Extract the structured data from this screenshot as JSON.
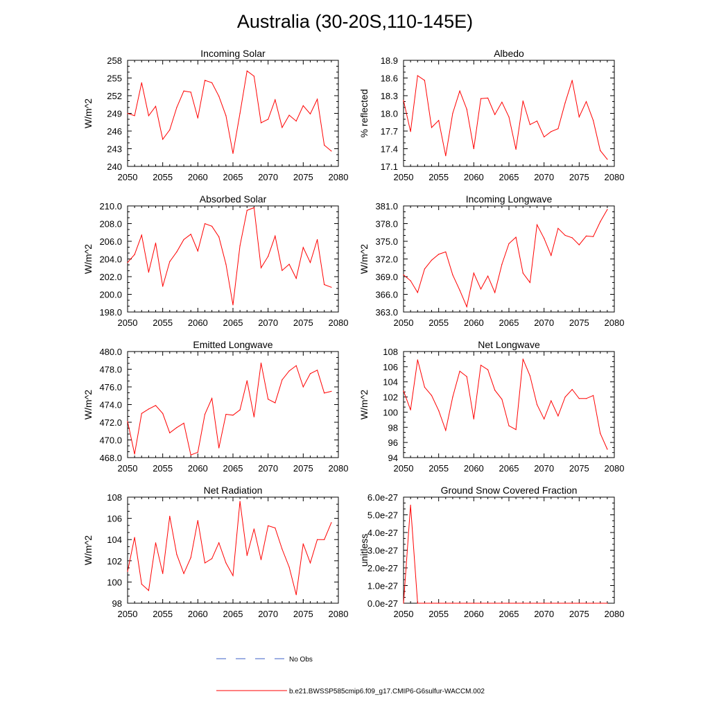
{
  "figure": {
    "title": "Australia (30-20S,110-145E)"
  },
  "legend": {
    "entries": [
      {
        "label": "No Obs",
        "color": "#3b5fc7",
        "dash": true
      },
      {
        "label": "b.e21.BWSSP585cmip6.f09_g17.CMIP6-G6sulfur-WACCM.002",
        "color": "#ff0000",
        "dash": false
      }
    ]
  },
  "chart_data": [
    {
      "type": "line",
      "title": "Incoming Solar",
      "ylabel": "W/m^2",
      "xlim": [
        2050,
        2080
      ],
      "ylim": [
        240,
        258
      ],
      "xticks": [
        "2050",
        "2055",
        "2060",
        "2065",
        "2070",
        "2075",
        "2080"
      ],
      "yticks": [
        "240",
        "243",
        "246",
        "249",
        "252",
        "255",
        "258"
      ],
      "series": [
        {
          "color": "#ff0000",
          "x": [
            2050,
            2051,
            2052,
            2053,
            2054,
            2055,
            2056,
            2057,
            2058,
            2059,
            2060,
            2061,
            2062,
            2063,
            2064,
            2065,
            2066,
            2067,
            2068,
            2069,
            2070,
            2071,
            2072,
            2073,
            2074,
            2075,
            2076,
            2077,
            2078,
            2079
          ],
          "values": [
            249.0,
            248.6,
            254.2,
            248.6,
            250.2,
            244.6,
            246.2,
            250.0,
            252.8,
            252.6,
            248.2,
            254.6,
            254.2,
            251.9,
            248.6,
            242.2,
            249.0,
            256.2,
            255.3,
            247.4,
            248.0,
            251.3,
            246.6,
            248.7,
            247.7,
            250.3,
            248.9,
            251.4,
            243.6,
            242.6
          ]
        }
      ]
    },
    {
      "type": "line",
      "title": "Albedo",
      "ylabel": "% reflected",
      "xlim": [
        2050,
        2080
      ],
      "ylim": [
        17.1,
        18.9
      ],
      "xticks": [
        "2050",
        "2055",
        "2060",
        "2065",
        "2070",
        "2075",
        "2080"
      ],
      "yticks": [
        "17.1",
        "17.4",
        "17.7",
        "18.0",
        "18.3",
        "18.6",
        "18.9"
      ],
      "series": [
        {
          "color": "#ff0000",
          "x": [
            2050,
            2051,
            2052,
            2053,
            2054,
            2055,
            2056,
            2057,
            2058,
            2059,
            2060,
            2061,
            2062,
            2063,
            2064,
            2065,
            2066,
            2067,
            2068,
            2069,
            2070,
            2071,
            2072,
            2073,
            2074,
            2075,
            2076,
            2077,
            2078,
            2079
          ],
          "values": [
            18.22,
            17.69,
            18.64,
            18.56,
            17.76,
            17.88,
            17.28,
            18.0,
            18.38,
            18.07,
            17.4,
            18.25,
            18.26,
            17.98,
            18.19,
            17.94,
            17.39,
            18.21,
            17.81,
            17.87,
            17.6,
            17.69,
            17.74,
            18.18,
            18.56,
            17.94,
            18.2,
            17.88,
            17.37,
            17.22
          ]
        }
      ]
    },
    {
      "type": "line",
      "title": "Absorbed Solar",
      "ylabel": "W/m^2",
      "xlim": [
        2050,
        2080
      ],
      "ylim": [
        198.0,
        210.0
      ],
      "xticks": [
        "2050",
        "2055",
        "2060",
        "2065",
        "2070",
        "2075",
        "2080"
      ],
      "yticks": [
        "198.0",
        "200.0",
        "202.0",
        "204.0",
        "206.0",
        "208.0",
        "210.0"
      ],
      "series": [
        {
          "color": "#ff0000",
          "x": [
            2050,
            2051,
            2052,
            2053,
            2054,
            2055,
            2056,
            2057,
            2058,
            2059,
            2060,
            2061,
            2062,
            2063,
            2064,
            2065,
            2066,
            2067,
            2068,
            2069,
            2070,
            2071,
            2072,
            2073,
            2074,
            2075,
            2076,
            2077,
            2078,
            2079
          ],
          "values": [
            203.6,
            204.5,
            206.7,
            202.5,
            205.8,
            200.9,
            203.7,
            204.8,
            206.2,
            206.8,
            204.9,
            208.0,
            207.7,
            206.5,
            203.4,
            198.8,
            205.5,
            209.5,
            209.8,
            203.0,
            204.3,
            206.6,
            202.7,
            203.4,
            201.8,
            205.3,
            203.6,
            206.2,
            201.1,
            200.8
          ]
        }
      ]
    },
    {
      "type": "line",
      "title": "Incoming Longwave",
      "ylabel": "W/m^2",
      "xlim": [
        2050,
        2080
      ],
      "ylim": [
        363.0,
        381.0
      ],
      "xticks": [
        "2050",
        "2055",
        "2060",
        "2065",
        "2070",
        "2075",
        "2080"
      ],
      "yticks": [
        "363.0",
        "366.0",
        "369.0",
        "372.0",
        "375.0",
        "378.0",
        "381.0"
      ],
      "series": [
        {
          "color": "#ff0000",
          "x": [
            2050,
            2051,
            2052,
            2053,
            2054,
            2055,
            2056,
            2057,
            2058,
            2059,
            2060,
            2061,
            2062,
            2063,
            2064,
            2065,
            2066,
            2067,
            2068,
            2069,
            2070,
            2071,
            2072,
            2073,
            2074,
            2075,
            2076,
            2077,
            2078,
            2079
          ],
          "values": [
            369.3,
            368.3,
            366.3,
            370.3,
            371.8,
            372.8,
            373.2,
            369.3,
            366.7,
            363.9,
            369.6,
            366.9,
            369.1,
            366.3,
            371.1,
            374.6,
            375.7,
            369.6,
            368.0,
            377.8,
            375.5,
            372.6,
            377.2,
            376.0,
            375.6,
            374.4,
            375.9,
            375.8,
            378.3,
            380.4
          ]
        }
      ]
    },
    {
      "type": "line",
      "title": "Emitted Longwave",
      "ylabel": "W/m^2",
      "xlim": [
        2050,
        2080
      ],
      "ylim": [
        468.0,
        480.0
      ],
      "xticks": [
        "2050",
        "2055",
        "2060",
        "2065",
        "2070",
        "2075",
        "2080"
      ],
      "yticks": [
        "468.0",
        "470.0",
        "472.0",
        "474.0",
        "476.0",
        "478.0",
        "480.0"
      ],
      "series": [
        {
          "color": "#ff0000",
          "x": [
            2050,
            2051,
            2052,
            2053,
            2054,
            2055,
            2056,
            2057,
            2058,
            2059,
            2060,
            2061,
            2062,
            2063,
            2064,
            2065,
            2066,
            2067,
            2068,
            2069,
            2070,
            2071,
            2072,
            2073,
            2074,
            2075,
            2076,
            2077,
            2078,
            2079
          ],
          "values": [
            472.1,
            468.4,
            473.0,
            473.5,
            473.9,
            473.0,
            470.8,
            471.4,
            471.9,
            468.3,
            468.6,
            472.9,
            474.7,
            469.1,
            472.9,
            472.8,
            473.4,
            476.7,
            472.6,
            478.7,
            474.6,
            474.2,
            476.8,
            477.8,
            478.4,
            476.0,
            477.5,
            477.9,
            475.3,
            475.5
          ]
        }
      ]
    },
    {
      "type": "line",
      "title": "Net Longwave",
      "ylabel": "W/m^2",
      "xlim": [
        2050,
        2080
      ],
      "ylim": [
        94,
        108
      ],
      "xticks": [
        "2050",
        "2055",
        "2060",
        "2065",
        "2070",
        "2075",
        "2080"
      ],
      "yticks": [
        "94",
        "96",
        "98",
        "100",
        "102",
        "104",
        "106",
        "108"
      ],
      "series": [
        {
          "color": "#ff0000",
          "x": [
            2050,
            2051,
            2052,
            2053,
            2054,
            2055,
            2056,
            2057,
            2058,
            2059,
            2060,
            2061,
            2062,
            2063,
            2064,
            2065,
            2066,
            2067,
            2068,
            2069,
            2070,
            2071,
            2072,
            2073,
            2074,
            2075,
            2076,
            2077,
            2078,
            2079
          ],
          "values": [
            102.8,
            100.3,
            106.9,
            103.3,
            102.2,
            100.2,
            97.6,
            102.0,
            105.4,
            104.7,
            99.1,
            106.2,
            105.6,
            102.9,
            101.7,
            98.2,
            97.7,
            107.0,
            104.8,
            101.0,
            99.1,
            101.5,
            99.5,
            102.0,
            103.0,
            101.8,
            101.8,
            102.2,
            97.2,
            95.1
          ]
        }
      ]
    },
    {
      "type": "line",
      "title": "Net Radiation",
      "ylabel": "W/m^2",
      "xlim": [
        2050,
        2080
      ],
      "ylim": [
        98,
        108
      ],
      "xticks": [
        "2050",
        "2055",
        "2060",
        "2065",
        "2070",
        "2075",
        "2080"
      ],
      "yticks": [
        "98",
        "100",
        "102",
        "104",
        "106",
        "108"
      ],
      "series": [
        {
          "color": "#ff0000",
          "x": [
            2050,
            2051,
            2052,
            2053,
            2054,
            2055,
            2056,
            2057,
            2058,
            2059,
            2060,
            2061,
            2062,
            2063,
            2064,
            2065,
            2066,
            2067,
            2068,
            2069,
            2070,
            2071,
            2072,
            2073,
            2074,
            2075,
            2076,
            2077,
            2078,
            2079
          ],
          "values": [
            101.0,
            104.2,
            99.8,
            99.2,
            103.7,
            100.8,
            106.2,
            102.6,
            100.8,
            102.3,
            105.8,
            101.8,
            102.2,
            103.7,
            101.8,
            100.6,
            107.6,
            102.5,
            105.0,
            102.1,
            105.3,
            105.1,
            103.1,
            101.4,
            98.8,
            103.6,
            101.8,
            104.0,
            104.0,
            105.6
          ]
        }
      ]
    },
    {
      "type": "line",
      "title": "Ground Snow Covered Fraction",
      "ylabel": "unitless",
      "xlim": [
        2050,
        2080
      ],
      "ylim": [
        0.0,
        6e-27
      ],
      "xticks": [
        "2050",
        "2055",
        "2060",
        "2065",
        "2070",
        "2075",
        "2080"
      ],
      "yticks": [
        "0.0e-27",
        "1.0e-27",
        "2.0e-27",
        "3.0e-27",
        "4.0e-27",
        "5.0e-27",
        "6.0e-27"
      ],
      "series": [
        {
          "color": "#ff0000",
          "x": [
            2050,
            2051,
            2052,
            2053,
            2054,
            2055,
            2056,
            2057,
            2058,
            2059,
            2060,
            2061,
            2062,
            2063,
            2064,
            2065,
            2066,
            2067,
            2068,
            2069,
            2070,
            2071,
            2072,
            2073,
            2074,
            2075,
            2076,
            2077,
            2078,
            2079
          ],
          "values": [
            0,
            5.55e-27,
            0,
            0,
            0,
            0,
            0,
            0,
            0,
            0,
            0,
            0,
            0,
            0,
            0,
            0,
            0,
            0,
            0,
            0,
            0,
            0,
            0,
            0,
            0,
            0,
            0,
            0,
            0,
            0
          ]
        }
      ]
    }
  ]
}
